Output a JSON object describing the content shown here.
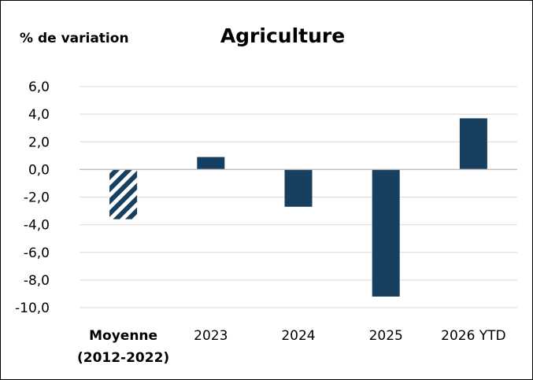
{
  "chart_data": {
    "type": "bar",
    "title": "Agriculture",
    "ylabel": "% de variation",
    "xlabel": "",
    "categories": [
      "Moyenne (2012-2022)",
      "2023",
      "2024",
      "2025",
      "2026 YTD"
    ],
    "category_lines": [
      [
        "Moyenne",
        "(2012-2022)"
      ],
      [
        "2023"
      ],
      [
        "2024"
      ],
      [
        "2025"
      ],
      [
        "2026 YTD"
      ]
    ],
    "category_bold": [
      true,
      false,
      false,
      false,
      false
    ],
    "values": [
      -3.6,
      0.9,
      -2.7,
      -9.2,
      3.7
    ],
    "hatched": [
      true,
      false,
      false,
      false,
      false
    ],
    "ylim": [
      -10,
      6
    ],
    "yticks": [
      6,
      4,
      2,
      0,
      -2,
      -4,
      -6,
      -8,
      -10
    ],
    "ytick_labels": [
      "6,0",
      "4,0",
      "2,0",
      "0,0",
      "-2,0",
      "-4,0",
      "-6,0",
      "-8,0",
      "-10,0"
    ],
    "grid": true,
    "legend": "none",
    "colors": {
      "bar": "#173F5F",
      "grid": "#D9D9D9",
      "axis": "#BFBFBF"
    }
  }
}
